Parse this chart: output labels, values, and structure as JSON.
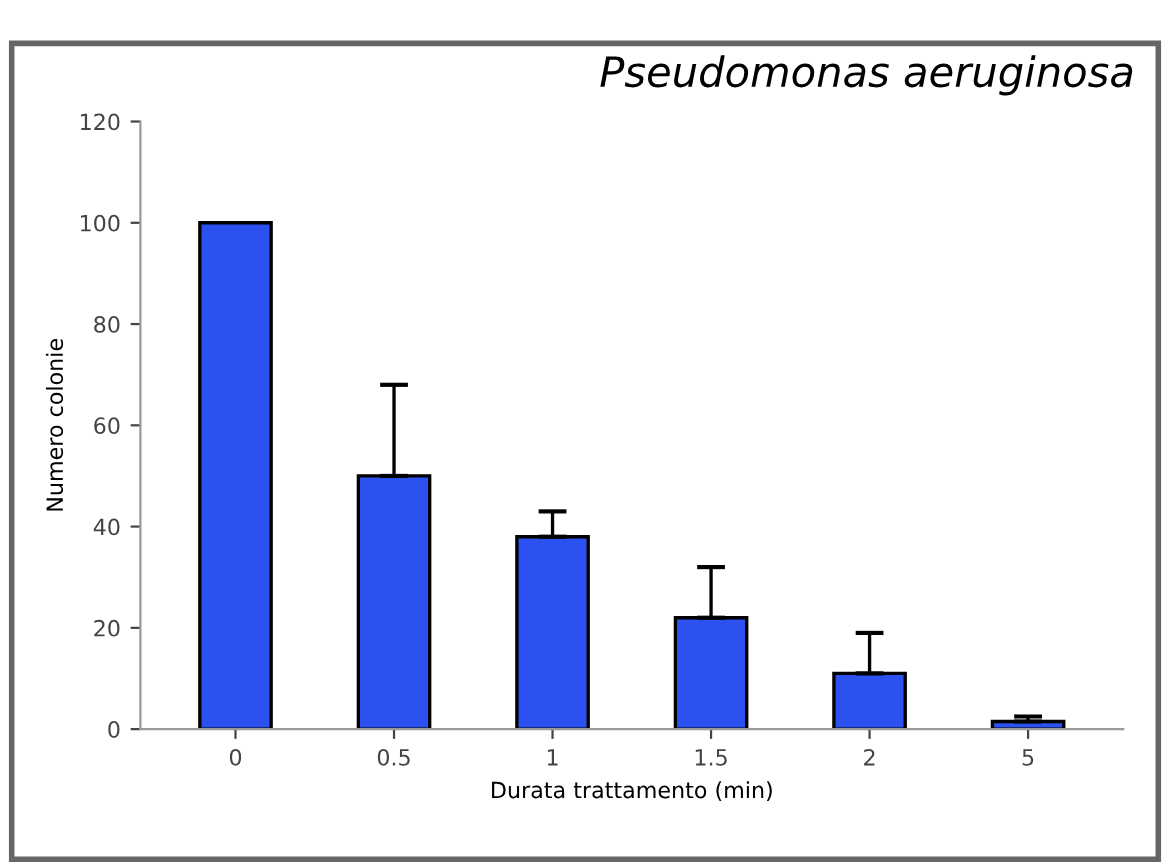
{
  "chart_data": {
    "type": "bar",
    "title": "Pseudomonas aeruginosa",
    "xlabel": "Durata trattamento (min)",
    "ylabel": "Numero colonie",
    "categories": [
      "0",
      "0.5",
      "1",
      "1.5",
      "2",
      "5"
    ],
    "values": [
      100,
      50,
      38,
      22,
      11,
      1.5
    ],
    "errors": [
      null,
      [
        50,
        68
      ],
      [
        38,
        43
      ],
      [
        22,
        32
      ],
      [
        11,
        19
      ],
      [
        1.5,
        2.5
      ]
    ],
    "color": "#2b52f0",
    "ylim": [
      0,
      120
    ],
    "yticks": [
      0,
      20,
      40,
      60,
      80,
      100,
      120
    ],
    "grid": false
  }
}
